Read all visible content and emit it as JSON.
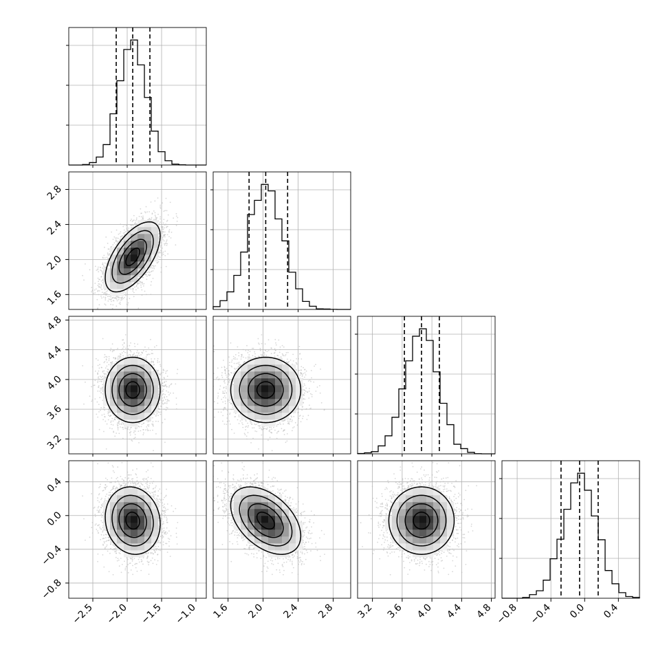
{
  "chart_data": {
    "type": "corner",
    "grid": true,
    "parameters": [
      {
        "range": [
          -2.85,
          -0.85
        ],
        "ticks": [
          -2.5,
          -2.0,
          -1.5,
          -1.0
        ],
        "tick_labels": [
          "−2.5",
          "−2.0",
          "−1.5",
          "−1.0"
        ],
        "mean": -1.92,
        "sd": 0.2,
        "quantiles": [
          -2.16,
          -1.92,
          -1.67
        ]
      },
      {
        "range": [
          1.43,
          3.0
        ],
        "ticks": [
          1.6,
          2.0,
          2.4,
          2.8
        ],
        "tick_labels": [
          "1.6",
          "2.0",
          "2.4",
          "2.8"
        ],
        "mean": 2.03,
        "sd": 0.2,
        "quantiles": [
          1.84,
          2.03,
          2.28
        ]
      },
      {
        "range": [
          3.0,
          4.85
        ],
        "ticks": [
          3.2,
          3.6,
          4.0,
          4.4,
          4.8
        ],
        "tick_labels": [
          "3.2",
          "3.6",
          "4.0",
          "4.4",
          "4.8"
        ],
        "mean": 3.86,
        "sd": 0.22,
        "quantiles": [
          3.63,
          3.86,
          4.1
        ]
      },
      {
        "range": [
          -0.98,
          0.65
        ],
        "ticks": [
          -0.8,
          -0.4,
          0.0,
          0.4
        ],
        "tick_labels": [
          "−0.8",
          "−0.4",
          "0.0",
          "0.4"
        ],
        "mean": -0.06,
        "sd": 0.2,
        "quantiles": [
          -0.28,
          -0.06,
          0.16
        ]
      }
    ],
    "correlations": [
      [
        1.0,
        0.6,
        0.0,
        -0.1
      ],
      [
        0.6,
        1.0,
        0.0,
        -0.45
      ],
      [
        0.0,
        0.0,
        1.0,
        0.0
      ],
      [
        -0.1,
        -0.45,
        0.0,
        1.0
      ]
    ]
  }
}
